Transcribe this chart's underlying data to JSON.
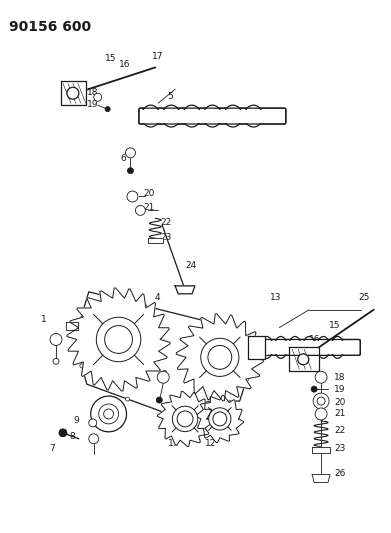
{
  "title": "90156 600",
  "bg_color": "#ffffff",
  "line_color": "#1a1a1a",
  "title_fontsize": 10,
  "label_fontsize": 6.5,
  "fig_width": 3.91,
  "fig_height": 5.33,
  "dpi": 100
}
